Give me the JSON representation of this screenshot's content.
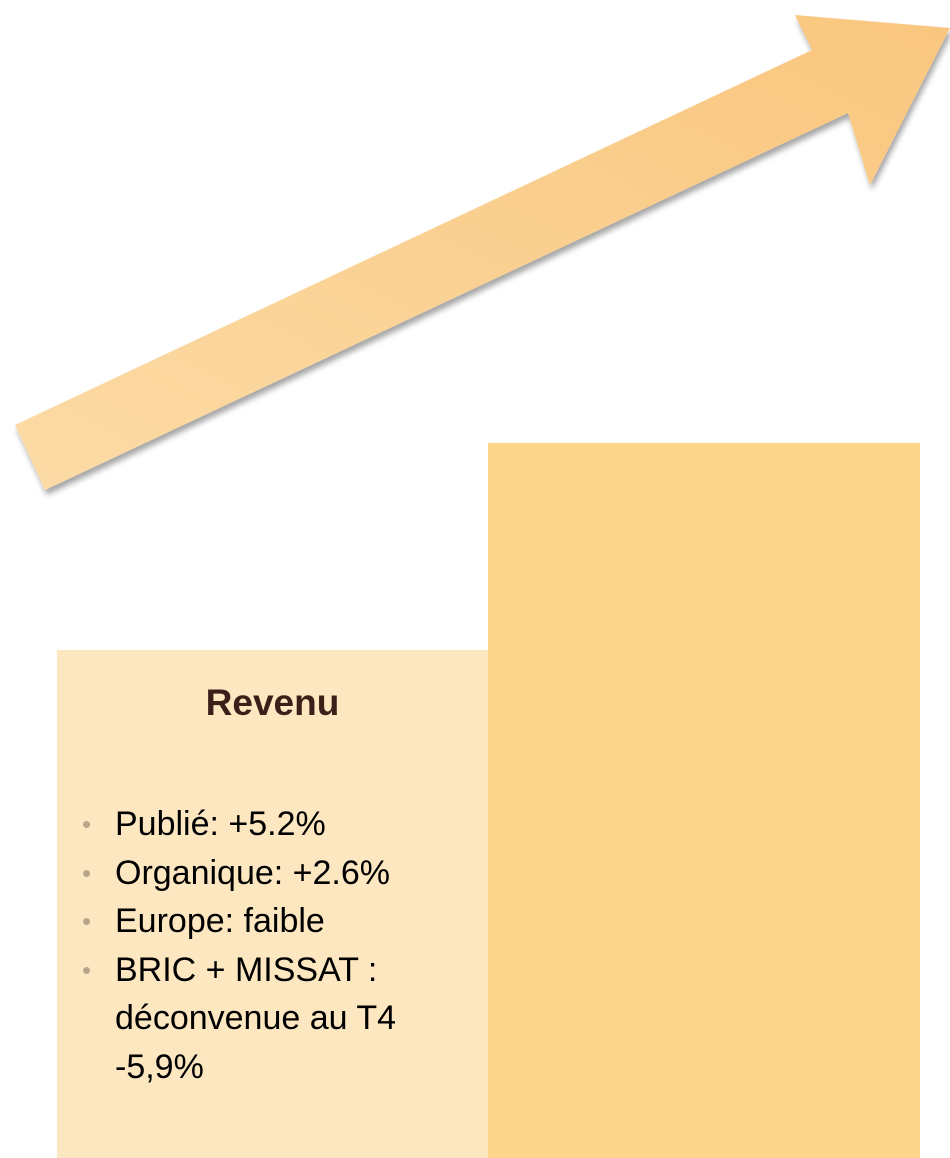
{
  "title": "Revenu",
  "bullets": [
    "Publié: +5.2%",
    "Organique: +2.6%",
    "Europe: faible",
    "BRIC + MISSAT : déconvenue au T4 -5,9%"
  ]
}
